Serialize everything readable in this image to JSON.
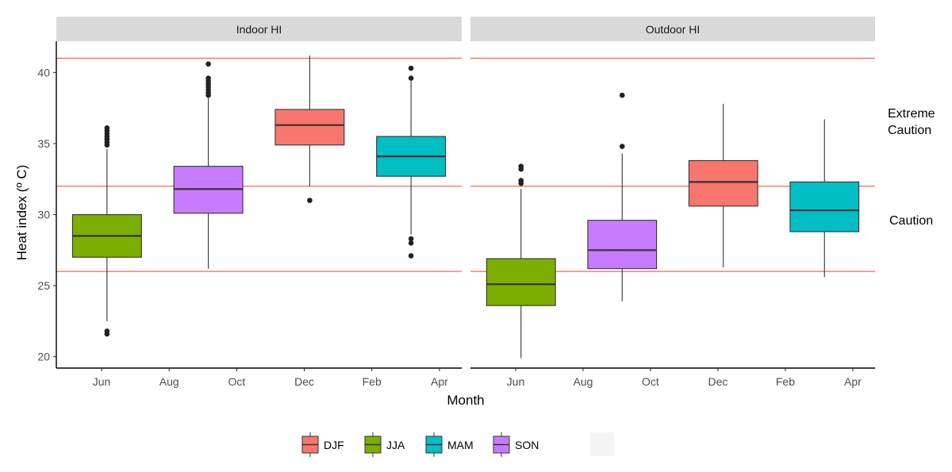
{
  "chart_data": {
    "type": "boxplot",
    "xlabel": "Month",
    "ylabel": "Heat index (º C)",
    "ylim": [
      19.2,
      42.2
    ],
    "yticks": [
      20,
      25,
      30,
      35,
      40
    ],
    "xticks": [
      "Jun",
      "Aug",
      "Oct",
      "Dec",
      "Feb",
      "Apr"
    ],
    "grid": false,
    "legend_position": "bottom",
    "threshold_lines": [
      26,
      32,
      41
    ],
    "threshold_color": "#F8766D",
    "zone_labels": {
      "extreme_caution": [
        "Extreme",
        "Caution"
      ],
      "caution": "Caution"
    },
    "season_colors": {
      "DJF": "#F8766D",
      "JJA": "#7CAE00",
      "MAM": "#00BFC4",
      "SON": "#C77CFF"
    },
    "legend": [
      "DJF",
      "JJA",
      "MAM",
      "SON"
    ],
    "panels": [
      {
        "title": "Indoor HI",
        "boxes": [
          {
            "season": "JJA",
            "xmin": 0,
            "xmax": 1.5,
            "q1": 27.0,
            "median": 28.5,
            "q3": 30.0,
            "lower": 22.5,
            "upper": 34.6,
            "outliers": [
              21.6,
              21.8,
              34.9,
              35.1,
              35.3,
              35.5,
              35.7,
              35.9,
              36.1
            ]
          },
          {
            "season": "SON",
            "xmin": 1.5,
            "xmax": 3.0,
            "q1": 30.1,
            "median": 31.8,
            "q3": 33.4,
            "lower": 26.2,
            "upper": 38.2,
            "outliers": [
              38.4,
              38.6,
              38.8,
              39.0,
              39.2,
              39.4,
              39.6,
              40.6
            ]
          },
          {
            "season": "DJF",
            "xmin": 3.0,
            "xmax": 4.5,
            "q1": 34.9,
            "median": 36.3,
            "q3": 37.4,
            "lower": 32.0,
            "upper": 41.2,
            "outliers": [
              31.0
            ]
          },
          {
            "season": "MAM",
            "xmin": 4.5,
            "xmax": 6.0,
            "q1": 32.7,
            "median": 34.1,
            "q3": 35.5,
            "lower": 28.6,
            "upper": 39.4,
            "outliers": [
              27.1,
              28.0,
              28.3,
              39.6,
              40.3
            ]
          }
        ]
      },
      {
        "title": "Outdoor HI",
        "boxes": [
          {
            "season": "JJA",
            "xmin": 0,
            "xmax": 1.5,
            "q1": 23.6,
            "median": 25.1,
            "q3": 26.9,
            "lower": 19.9,
            "upper": 31.8,
            "outliers": [
              32.2,
              32.4,
              33.2,
              33.4
            ]
          },
          {
            "season": "SON",
            "xmin": 1.5,
            "xmax": 3.0,
            "q1": 26.2,
            "median": 27.5,
            "q3": 29.6,
            "lower": 23.9,
            "upper": 34.3,
            "outliers": [
              34.8,
              38.4
            ]
          },
          {
            "season": "DJF",
            "xmin": 3.0,
            "xmax": 4.5,
            "q1": 30.6,
            "median": 32.3,
            "q3": 33.8,
            "lower": 26.3,
            "upper": 37.8,
            "outliers": []
          },
          {
            "season": "MAM",
            "xmin": 4.5,
            "xmax": 6.0,
            "q1": 28.8,
            "median": 30.3,
            "q3": 32.3,
            "lower": 25.6,
            "upper": 36.7,
            "outliers": []
          }
        ]
      }
    ]
  }
}
